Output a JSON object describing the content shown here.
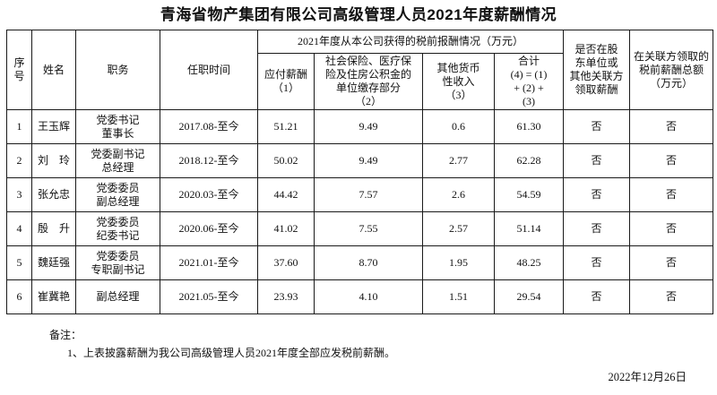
{
  "title": "青海省物产集团有限公司高级管理人员2021年度薪酬情况",
  "table": {
    "headers": {
      "seq": "序\n号",
      "name": "姓名",
      "position": "职务",
      "tenure": "任职时间",
      "comp_group": "2021年度从本公司获得的税前报酬情况（万元）",
      "payable": "应付薪酬\n（1）",
      "social": "社会保险、医疗保\n险及住房公积金的\n单位缴存部分\n（2）",
      "other": "其他货币\n性收入\n（3）",
      "total": "合计\n(4) = (1)\n+ (2) +\n(3)",
      "shareholder": "是否在股\n东单位或\n其他关联方\n领取薪酬",
      "related": "在关联方领取的\n税前薪酬总额\n（万元）"
    },
    "rows": [
      {
        "seq": "1",
        "name": "王玉辉",
        "position": "党委书记\n董事长",
        "tenure": "2017.08-至今",
        "payable": "51.21",
        "social": "9.49",
        "other": "0.6",
        "total": "61.30",
        "shareholder": "否",
        "related": "否"
      },
      {
        "seq": "2",
        "name": "刘　玲",
        "position": "党委副书记\n总经理",
        "tenure": "2018.12-至今",
        "payable": "50.02",
        "social": "9.49",
        "other": "2.77",
        "total": "62.28",
        "shareholder": "否",
        "related": "否"
      },
      {
        "seq": "3",
        "name": "张允忠",
        "position": "党委委员\n副总经理",
        "tenure": "2020.03-至今",
        "payable": "44.42",
        "social": "7.57",
        "other": "2.6",
        "total": "54.59",
        "shareholder": "否",
        "related": "否"
      },
      {
        "seq": "4",
        "name": "殷　升",
        "position": "党委委员\n纪委书记",
        "tenure": "2020.06-至今",
        "payable": "41.02",
        "social": "7.55",
        "other": "2.57",
        "total": "51.14",
        "shareholder": "否",
        "related": "否"
      },
      {
        "seq": "5",
        "name": "魏廷强",
        "position": "党委委员\n专职副书记",
        "tenure": "2021.01-至今",
        "payable": "37.60",
        "social": "8.70",
        "other": "1.95",
        "total": "48.25",
        "shareholder": "否",
        "related": "否"
      },
      {
        "seq": "6",
        "name": "崔冀艳",
        "position": "副总经理",
        "tenure": "2021.05-至今",
        "payable": "23.93",
        "social": "4.10",
        "other": "1.51",
        "total": "29.54",
        "shareholder": "否",
        "related": "否"
      }
    ]
  },
  "notes": {
    "label": "备注：",
    "item1": "1、上表披露薪酬为我公司高级管理人员2021年度全部应发税前薪酬。"
  },
  "date": "2022年12月26日"
}
